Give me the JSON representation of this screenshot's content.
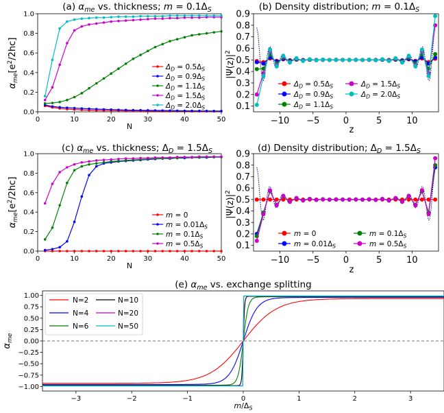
{
  "figure": {
    "colors": {
      "red": "#ff0000",
      "blue": "#0000ff",
      "green": "#008000",
      "magenta": "#cc00cc",
      "cyan": "#00bfbf",
      "black": "#000000",
      "navy": "#000080"
    }
  },
  "chart_data": [
    {
      "id": "a",
      "type": "line",
      "title": "(a) α_me vs. thickness; m = 0.1Δ_S",
      "xlabel": "N",
      "ylabel": "α_me[e²/2hc]",
      "xlim": [
        0,
        50
      ],
      "ylim": [
        0,
        1.0
      ],
      "xticks": [
        "0",
        "10",
        "20",
        "30",
        "40",
        "50"
      ],
      "yticks": [
        "0.0",
        "0.2",
        "0.4",
        "0.6",
        "0.8",
        "1.0"
      ],
      "legend_position": "right",
      "series": [
        {
          "name": "Δ_D = 0.5Δ_S",
          "color": "#ff0000",
          "x": [
            2,
            4,
            6,
            8,
            10,
            12,
            14,
            16,
            18,
            20,
            22,
            24,
            26,
            28,
            30,
            32,
            34,
            36,
            38,
            40,
            42,
            44,
            46,
            48,
            50
          ],
          "values": [
            0.06,
            0.045,
            0.035,
            0.028,
            0.023,
            0.02,
            0.017,
            0.015,
            0.013,
            0.012,
            0.011,
            0.01,
            0.009,
            0.009,
            0.008,
            0.008,
            0.007,
            0.007,
            0.007,
            0.006,
            0.006,
            0.006,
            0.006,
            0.005,
            0.005
          ]
        },
        {
          "name": "Δ_D = 0.9Δ_S",
          "color": "#0000ff",
          "x": [
            2,
            4,
            6,
            8,
            10,
            12,
            14,
            16,
            18,
            20,
            22,
            24,
            26,
            28,
            30,
            32,
            34,
            36,
            38,
            40,
            42,
            44,
            46,
            48,
            50
          ],
          "values": [
            0.07,
            0.055,
            0.047,
            0.042,
            0.038,
            0.034,
            0.031,
            0.028,
            0.025,
            0.023,
            0.021,
            0.019,
            0.017,
            0.016,
            0.015,
            0.014,
            0.013,
            0.012,
            0.011,
            0.01,
            0.01,
            0.009,
            0.009,
            0.008,
            0.008
          ]
        },
        {
          "name": "Δ_D = 1.1Δ_S",
          "color": "#008000",
          "x": [
            2,
            4,
            6,
            8,
            10,
            12,
            14,
            16,
            18,
            20,
            22,
            24,
            26,
            28,
            30,
            32,
            34,
            36,
            38,
            40,
            42,
            44,
            46,
            48,
            50
          ],
          "values": [
            0.085,
            0.09,
            0.1,
            0.12,
            0.15,
            0.19,
            0.24,
            0.29,
            0.34,
            0.39,
            0.44,
            0.49,
            0.54,
            0.58,
            0.62,
            0.66,
            0.69,
            0.72,
            0.74,
            0.76,
            0.78,
            0.79,
            0.8,
            0.81,
            0.82
          ]
        },
        {
          "name": "Δ_D = 1.5Δ_S",
          "color": "#cc00cc",
          "x": [
            2,
            4,
            6,
            8,
            10,
            12,
            14,
            16,
            18,
            20,
            22,
            24,
            26,
            28,
            30,
            32,
            34,
            36,
            38,
            40,
            42,
            44,
            46,
            48,
            50
          ],
          "values": [
            0.12,
            0.25,
            0.48,
            0.7,
            0.83,
            0.87,
            0.89,
            0.9,
            0.91,
            0.92,
            0.925,
            0.93,
            0.935,
            0.94,
            0.945,
            0.95,
            0.95,
            0.955,
            0.955,
            0.96,
            0.96,
            0.96,
            0.965,
            0.965,
            0.965
          ]
        },
        {
          "name": "Δ_D = 2.0Δ_S",
          "color": "#00bfbf",
          "x": [
            2,
            4,
            6,
            8,
            10,
            12,
            14,
            16,
            18,
            20,
            22,
            24,
            26,
            28,
            30,
            32,
            34,
            36,
            38,
            40,
            42,
            44,
            46,
            48,
            50
          ],
          "values": [
            0.16,
            0.53,
            0.85,
            0.92,
            0.94,
            0.95,
            0.955,
            0.96,
            0.96,
            0.965,
            0.97,
            0.97,
            0.97,
            0.975,
            0.975,
            0.975,
            0.975,
            0.98,
            0.98,
            0.98,
            0.98,
            0.98,
            0.98,
            0.98,
            0.98
          ]
        }
      ]
    },
    {
      "id": "b",
      "type": "line",
      "title": "(b) Density distribution; m = 0.1Δ_S",
      "xlabel": "z",
      "ylabel": "|Ψ(z)|²",
      "xlim": [
        -14,
        14
      ],
      "ylim": [
        0.05,
        0.9
      ],
      "xticks": [
        "−10",
        "−5",
        "0",
        "5",
        "10"
      ],
      "yticks": [
        "0.1",
        "0.2",
        "0.3",
        "0.4",
        "0.5",
        "0.6",
        "0.7",
        "0.8",
        "0.9"
      ],
      "legend_position": "lower center",
      "series": [
        {
          "name": "Δ_D = 0.5Δ_S",
          "color": "#ff0000"
        },
        {
          "name": "Δ_D = 0.9Δ_S",
          "color": "#0000ff"
        },
        {
          "name": "Δ_D = 1.1Δ_S",
          "color": "#008000"
        },
        {
          "name": "Δ_D = 1.5Δ_S",
          "color": "#cc00cc"
        },
        {
          "name": "Δ_D = 2.0Δ_S",
          "color": "#00bfbf"
        }
      ]
    },
    {
      "id": "c",
      "type": "line",
      "title": "(c) α_me vs. thickness; Δ_D = 1.5Δ_S",
      "xlabel": "N",
      "ylabel": "α_me[e²/2hc]",
      "xlim": [
        0,
        50
      ],
      "ylim": [
        0,
        1.0
      ],
      "xticks": [
        "0",
        "10",
        "20",
        "30",
        "40",
        "50"
      ],
      "yticks": [
        "0.0",
        "0.2",
        "0.4",
        "0.6",
        "0.8",
        "1.0"
      ],
      "legend_position": "right",
      "series": [
        {
          "name": "m = 0",
          "color": "#ff0000",
          "x": [
            2,
            4,
            6,
            8,
            10,
            12,
            14,
            16,
            18,
            20,
            22,
            24,
            26,
            28,
            30,
            32,
            34,
            36,
            38,
            40,
            42,
            44,
            46,
            48,
            50
          ],
          "values": [
            0,
            0,
            0,
            0,
            0,
            0,
            0,
            0,
            0,
            0,
            0,
            0,
            0,
            0,
            0,
            0,
            0,
            0,
            0,
            0,
            0,
            0,
            0,
            0,
            0
          ]
        },
        {
          "name": "m = 0.01Δ_S",
          "color": "#0000ff",
          "x": [
            2,
            4,
            6,
            8,
            10,
            12,
            14,
            16,
            18,
            20,
            22,
            24,
            26,
            28,
            30,
            32,
            34,
            36,
            38,
            40,
            42,
            44,
            46,
            48,
            50
          ],
          "values": [
            0.01,
            0.02,
            0.04,
            0.1,
            0.3,
            0.56,
            0.78,
            0.87,
            0.9,
            0.91,
            0.92,
            0.925,
            0.93,
            0.935,
            0.94,
            0.945,
            0.95,
            0.95,
            0.955,
            0.955,
            0.96,
            0.96,
            0.96,
            0.965,
            0.965
          ]
        },
        {
          "name": "m = 0.1Δ_S",
          "color": "#008000",
          "x": [
            2,
            4,
            6,
            8,
            10,
            12,
            14,
            16,
            18,
            20,
            22,
            24,
            26,
            28,
            30,
            32,
            34,
            36,
            38,
            40,
            42,
            44,
            46,
            48,
            50
          ],
          "values": [
            0.12,
            0.24,
            0.47,
            0.7,
            0.83,
            0.87,
            0.89,
            0.9,
            0.91,
            0.92,
            0.925,
            0.93,
            0.935,
            0.94,
            0.945,
            0.95,
            0.95,
            0.955,
            0.955,
            0.96,
            0.96,
            0.96,
            0.965,
            0.965,
            0.965
          ]
        },
        {
          "name": "m = 0.5Δ_S",
          "color": "#cc00cc",
          "x": [
            2,
            4,
            6,
            8,
            10,
            12,
            14,
            16,
            18,
            20,
            22,
            24,
            26,
            28,
            30,
            32,
            34,
            36,
            38,
            40,
            42,
            44,
            46,
            48,
            50
          ],
          "values": [
            0.49,
            0.69,
            0.81,
            0.86,
            0.89,
            0.91,
            0.92,
            0.93,
            0.935,
            0.94,
            0.945,
            0.95,
            0.95,
            0.955,
            0.955,
            0.96,
            0.96,
            0.96,
            0.965,
            0.965,
            0.965,
            0.97,
            0.97,
            0.97,
            0.97
          ]
        }
      ]
    },
    {
      "id": "d",
      "type": "line",
      "title": "(d) Density distribution; Δ_D = 1.5Δ_S",
      "xlabel": "z",
      "ylabel": "|Ψ(z)|²",
      "xlim": [
        -14,
        14
      ],
      "ylim": [
        0.05,
        0.9
      ],
      "xticks": [
        "−10",
        "−5",
        "0",
        "5",
        "10"
      ],
      "yticks": [
        "0.1",
        "0.2",
        "0.3",
        "0.4",
        "0.5",
        "0.6",
        "0.7",
        "0.8",
        "0.9"
      ],
      "legend_position": "lower center",
      "series": [
        {
          "name": "m = 0",
          "color": "#ff0000"
        },
        {
          "name": "m = 0.01Δ_S",
          "color": "#0000ff"
        },
        {
          "name": "m = 0.1Δ_S",
          "color": "#008000"
        },
        {
          "name": "m = 0.5Δ_S",
          "color": "#cc00cc"
        }
      ]
    },
    {
      "id": "e",
      "type": "line",
      "title": "(e) α_me vs. exchange splitting",
      "xlabel": "m/Δ_S",
      "ylabel": "α_me",
      "xlim": [
        -3.6,
        3.6
      ],
      "ylim": [
        -1.1,
        1.1
      ],
      "xticks": [
        "−3",
        "−2",
        "−1",
        "0",
        "1",
        "2",
        "3"
      ],
      "yticks": [
        "−1.00",
        "−0.75",
        "−0.50",
        "−0.25",
        "0.00",
        "0.25",
        "0.50",
        "0.75",
        "1.00"
      ],
      "legend_position": "upper left",
      "series": [
        {
          "name": "N=2",
          "color": "#ff0000",
          "scale": 0.6
        },
        {
          "name": "N=4",
          "color": "#0000ff",
          "scale": 0.25
        },
        {
          "name": "N=6",
          "color": "#008000",
          "scale": 0.09
        },
        {
          "name": "N=10",
          "color": "#000000",
          "scale": 0.025
        },
        {
          "name": "N=20",
          "color": "#cc00cc",
          "scale": 0.004
        },
        {
          "name": "N=50",
          "color": "#00bfbf",
          "scale": 0.001
        }
      ]
    }
  ]
}
